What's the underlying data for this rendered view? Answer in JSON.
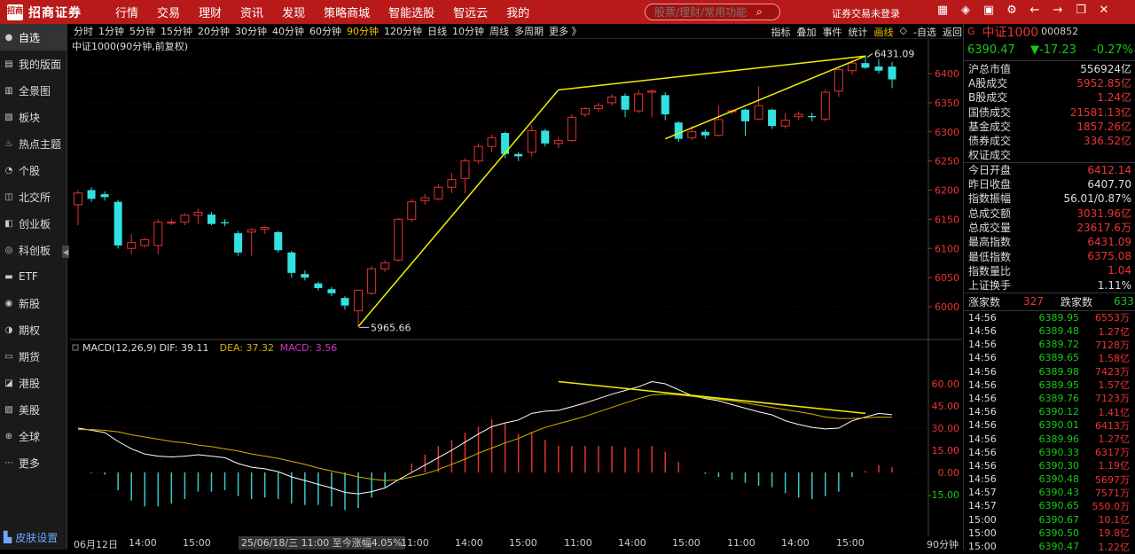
{
  "brand": {
    "mark": "招商",
    "name": "招商证券"
  },
  "menu": [
    "行情",
    "交易",
    "理财",
    "资讯",
    "发现",
    "策略商城",
    "智能选股",
    "智远云",
    "我的"
  ],
  "search": {
    "placeholder": "股票/理财/常用功能"
  },
  "login_status": "证券交易未登录",
  "sidebar": [
    "自选",
    "我的版面",
    "全景图",
    "板块",
    "热点主题",
    "个股",
    "北交所",
    "创业板",
    "科创板",
    "ETF",
    "新股",
    "期权",
    "期货",
    "港股",
    "美股",
    "全球",
    "更多"
  ],
  "skin": "皮肤设置",
  "periods": [
    "分时",
    "1分钟",
    "5分钟",
    "15分钟",
    "20分钟",
    "30分钟",
    "40分钟",
    "60分钟",
    "90分钟",
    "120分钟",
    "日线",
    "10分钟",
    "周线",
    "多周期",
    "更多 》"
  ],
  "active_period": "90分钟",
  "tools": [
    "指标",
    "叠加",
    "事件",
    "统计",
    "画线",
    "◇",
    "-自选",
    "返回"
  ],
  "chart_title": "中证1000(90分钟,前复权)",
  "macd": {
    "label": "MACD(12,26,9)",
    "dif": "DIF: 39.11",
    "dea": "DEA: 37.32",
    "macd": "MACD: 3.56"
  },
  "price_labels": {
    "high": "6431.09",
    "low": "5965.66"
  },
  "time_axis": {
    "labels": [
      "06月12日",
      "14:00",
      "15:00",
      "14:00",
      "15:00",
      "11:00",
      "14:00",
      "15:00",
      "11:00",
      "14:00",
      "15:00",
      "11:00",
      "14:00",
      "15:00"
    ],
    "cursor": "25/06/18/三 11:00 至今涨幅4.05%",
    "period": "90分钟"
  },
  "colors": {
    "up": "#e33333",
    "down": "#33e0e0",
    "trend": "#f0f000",
    "dif": "#ffffff",
    "dea": "#d4b000",
    "macd_neg": "#33cccc"
  },
  "quote": {
    "g": "G",
    "name": "中证1000",
    "code": "000852",
    "price": "6390.47",
    "change": "▼-17.23",
    "pct": "-0.27%"
  },
  "fundamentals": [
    [
      "沪总市值",
      "556924亿",
      "w"
    ],
    [
      "A股成交",
      "5952.85亿",
      "r"
    ],
    [
      "B股成交",
      "1.24亿",
      "r"
    ],
    [
      "国债成交",
      "21581.13亿",
      "r"
    ],
    [
      "基金成交",
      "1857.26亿",
      "r"
    ],
    [
      "债券成交",
      "336.52亿",
      "r"
    ],
    [
      "权证成交",
      "",
      "w"
    ],
    [
      "今日开盘",
      "6412.14",
      "r"
    ],
    [
      "昨日收盘",
      "6407.70",
      "w"
    ],
    [
      "指数振幅",
      "56.01/0.87%",
      "w"
    ],
    [
      "总成交额",
      "3031.96亿",
      "r"
    ],
    [
      "总成交量",
      "23617.6万",
      "r"
    ],
    [
      "最高指数",
      "6431.09",
      "r"
    ],
    [
      "最低指数",
      "6375.08",
      "r"
    ],
    [
      "指数量比",
      "1.04",
      "r"
    ],
    [
      "上证换手",
      "1.11%",
      "w"
    ]
  ],
  "breadth": {
    "up_label": "涨家数",
    "up": "327",
    "down_label": "跌家数",
    "down": "633"
  },
  "ticks": [
    [
      "14:56",
      "6389.95",
      "6553万"
    ],
    [
      "14:56",
      "6389.48",
      "1.27亿"
    ],
    [
      "14:56",
      "6389.72",
      "7128万"
    ],
    [
      "14:56",
      "6389.65",
      "1.58亿"
    ],
    [
      "14:56",
      "6389.98",
      "7423万"
    ],
    [
      "14:56",
      "6389.95",
      "1.57亿"
    ],
    [
      "14:56",
      "6389.76",
      "7123万"
    ],
    [
      "14:56",
      "6390.12",
      "1.41亿"
    ],
    [
      "14:56",
      "6390.01",
      "6413万"
    ],
    [
      "14:56",
      "6389.96",
      "1.27亿"
    ],
    [
      "14:56",
      "6390.33",
      "6317万"
    ],
    [
      "14:56",
      "6390.30",
      "1.19亿"
    ],
    [
      "14:56",
      "6390.48",
      "5697万"
    ],
    [
      "14:57",
      "6390.43",
      "7571万"
    ],
    [
      "14:57",
      "6390.65",
      "550.0万"
    ],
    [
      "15:00",
      "6390.67",
      "10.1亿"
    ],
    [
      "15:00",
      "6390.50",
      "19.8亿"
    ],
    [
      "15:00",
      "6390.47",
      "1.22亿"
    ]
  ],
  "chart_data": {
    "type": "candlestick",
    "title": "中证1000(90分钟,前复权)",
    "y_ticks": [
      6000,
      6050,
      6100,
      6150,
      6200,
      6250,
      6300,
      6350,
      6400
    ],
    "macd_ticks": [
      60.0,
      45.0,
      30.0,
      15.0,
      0.0,
      -15.0
    ],
    "candles": [
      [
        6175,
        6195,
        6140,
        6200
      ],
      [
        6200,
        6185,
        6180,
        6205
      ],
      [
        6193,
        6188,
        6182,
        6198
      ],
      [
        6180,
        6105,
        6100,
        6183
      ],
      [
        6100,
        6110,
        6090,
        6125
      ],
      [
        6105,
        6115,
        6102,
        6118
      ],
      [
        6105,
        6145,
        6090,
        6150
      ],
      [
        6145,
        6145,
        6140,
        6150
      ],
      [
        6145,
        6157,
        6140,
        6160
      ],
      [
        6157,
        6162,
        6142,
        6168
      ],
      [
        6158,
        6142,
        6140,
        6162
      ],
      [
        6145,
        6143,
        6138,
        6150
      ],
      [
        6126,
        6093,
        6087,
        6130
      ],
      [
        6128,
        6132,
        6087,
        6135
      ],
      [
        6133,
        6136,
        6125,
        6138
      ],
      [
        6128,
        6097,
        6093,
        6130
      ],
      [
        6093,
        6058,
        6050,
        6096
      ],
      [
        6056,
        6050,
        6045,
        6062
      ],
      [
        6040,
        6032,
        6028,
        6043
      ],
      [
        6030,
        6023,
        6018,
        6034
      ],
      [
        6015,
        6002,
        5995,
        6018
      ],
      [
        5993,
        6028,
        5966,
        6030
      ],
      [
        6023,
        6065,
        6020,
        6070
      ],
      [
        6065,
        6075,
        6060,
        6080
      ],
      [
        6080,
        6150,
        6077,
        6153
      ],
      [
        6150,
        6180,
        6145,
        6185
      ],
      [
        6182,
        6187,
        6175,
        6193
      ],
      [
        6185,
        6205,
        6182,
        6210
      ],
      [
        6205,
        6218,
        6195,
        6230
      ],
      [
        6220,
        6250,
        6195,
        6255
      ],
      [
        6250,
        6275,
        6245,
        6280
      ],
      [
        6275,
        6290,
        6265,
        6295
      ],
      [
        6298,
        6262,
        6255,
        6300
      ],
      [
        6262,
        6258,
        6250,
        6265
      ],
      [
        6265,
        6302,
        6258,
        6312
      ],
      [
        6302,
        6280,
        6275,
        6305
      ],
      [
        6280,
        6285,
        6272,
        6290
      ],
      [
        6285,
        6325,
        6283,
        6330
      ],
      [
        6330,
        6340,
        6325,
        6342
      ],
      [
        6340,
        6345,
        6335,
        6350
      ],
      [
        6350,
        6360,
        6345,
        6365
      ],
      [
        6362,
        6338,
        6325,
        6366
      ],
      [
        6336,
        6365,
        6332,
        6372
      ],
      [
        6368,
        6370,
        6325,
        6373
      ],
      [
        6363,
        6330,
        6320,
        6368
      ],
      [
        6316,
        6288,
        6283,
        6318
      ],
      [
        6290,
        6300,
        6286,
        6310
      ],
      [
        6300,
        6294,
        6288,
        6304
      ],
      [
        6294,
        6321,
        6292,
        6345
      ],
      [
        6335,
        6336,
        6330,
        6338
      ],
      [
        6338,
        6318,
        6293,
        6340
      ],
      [
        6322,
        6345,
        6320,
        6378
      ],
      [
        6338,
        6310,
        6305,
        6340
      ],
      [
        6310,
        6320,
        6306,
        6332
      ],
      [
        6326,
        6330,
        6320,
        6335
      ],
      [
        6327,
        6325,
        6318,
        6333
      ],
      [
        6322,
        6368,
        6318,
        6373
      ],
      [
        6370,
        6407,
        6360,
        6410
      ],
      [
        6405,
        6418,
        6398,
        6423
      ],
      [
        6418,
        6410,
        6408,
        6431
      ],
      [
        6412,
        6405,
        6400,
        6425
      ],
      [
        6412,
        6390,
        6375,
        6420
      ]
    ],
    "dif": [
      30.0,
      28.6,
      27.0,
      21.0,
      16.0,
      12.5,
      11.0,
      10.5,
      11.0,
      12.0,
      11.0,
      10.0,
      6.0,
      3.5,
      2.5,
      0.5,
      -3.0,
      -5.5,
      -8.0,
      -10.5,
      -13.5,
      -14.5,
      -13.0,
      -10.5,
      -5.0,
      0.0,
      5.0,
      10.0,
      15.0,
      20.5,
      26.0,
      31.0,
      33.5,
      35.5,
      40.0,
      41.5,
      42.0,
      44.5,
      47.0,
      50.0,
      53.0,
      55.5,
      58.0,
      61.5,
      60.0,
      56.0,
      52.0,
      50.0,
      48.5,
      46.0,
      43.5,
      41.0,
      39.0,
      35.0,
      32.5,
      30.5,
      29.5,
      30.0,
      35.0,
      37.5,
      40.0,
      39.11
    ],
    "dea": [
      29.0,
      29.0,
      28.5,
      27.5,
      25.5,
      24.0,
      22.5,
      21.0,
      20.0,
      18.5,
      17.5,
      16.0,
      14.5,
      12.5,
      11.0,
      9.5,
      7.5,
      5.5,
      3.0,
      1.0,
      -1.0,
      -3.0,
      -4.5,
      -5.5,
      -5.0,
      -3.0,
      -1.0,
      2.0,
      5.5,
      9.0,
      13.0,
      16.5,
      20.0,
      23.0,
      27.0,
      30.5,
      33.0,
      35.5,
      38.0,
      41.0,
      44.0,
      47.0,
      50.0,
      52.5,
      53.0,
      52.5,
      51.5,
      50.5,
      49.5,
      48.5,
      47.0,
      45.5,
      44.0,
      42.5,
      41.0,
      39.5,
      37.5,
      36.5,
      36.5,
      37.0,
      37.5,
      37.32
    ],
    "macd": [
      0,
      -0.5,
      -1.5,
      -12.0,
      -19.0,
      -23.0,
      -23.0,
      -21.0,
      -18.0,
      -13.0,
      -13.0,
      -12.0,
      -16.0,
      -18.0,
      -17.0,
      -18.0,
      -21.0,
      -22.0,
      -22.0,
      -23.0,
      -25.5,
      -24.0,
      -17.0,
      -10.0,
      0,
      6.0,
      12.0,
      18.0,
      22.0,
      27.0,
      31.0,
      36.0,
      33.0,
      26.0,
      27.0,
      22.0,
      18.0,
      18.0,
      18.0,
      18.0,
      18.0,
      17.0,
      16.0,
      18.0,
      14.0,
      7.0,
      0,
      -1.0,
      -3.0,
      -5.0,
      -7.0,
      -9.0,
      -10.0,
      -14.0,
      -17.0,
      -18.0,
      -16.0,
      -13.0,
      -3.0,
      1.0,
      5.0,
      3.56
    ],
    "trendlines": [
      [
        21,
        5966,
        36,
        6372
      ],
      [
        36,
        6372,
        59,
        6430
      ],
      [
        44,
        6288,
        59,
        6430
      ],
      [
        36,
        61.5,
        59,
        40.0
      ]
    ]
  }
}
